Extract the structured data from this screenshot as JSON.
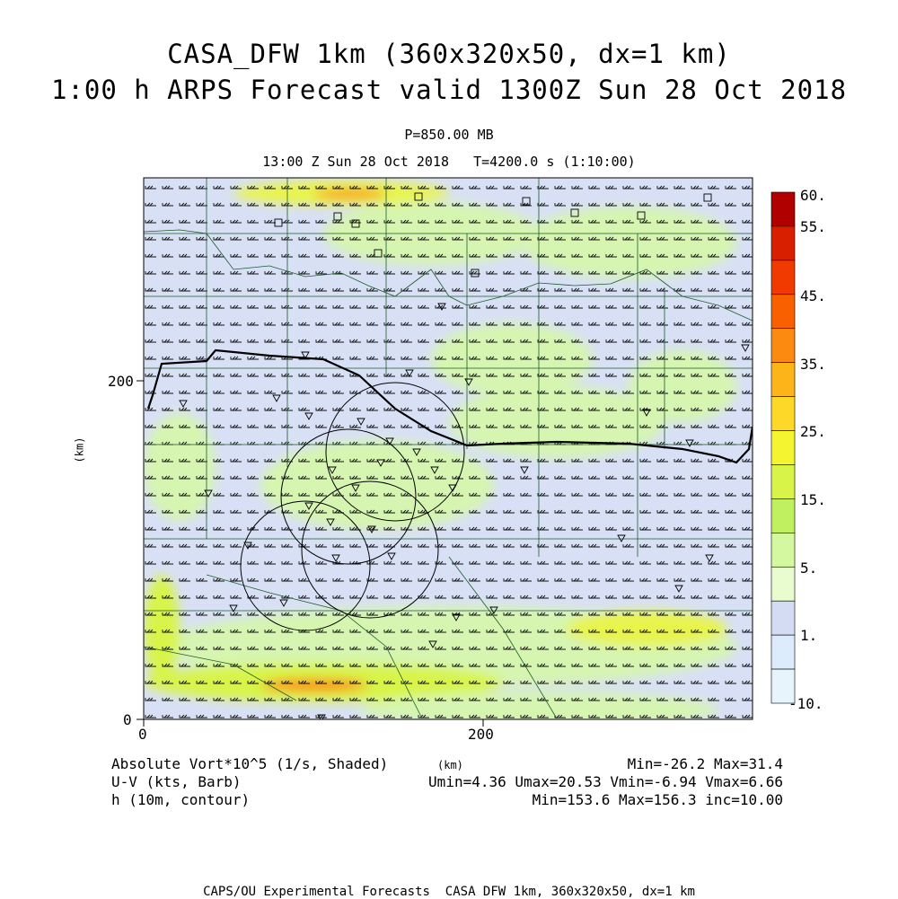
{
  "title": {
    "line1": "CASA_DFW 1km (360x320x50, dx=1 km)",
    "line2": "1:00 h ARPS Forecast valid 1300Z Sun 28 Oct 2018"
  },
  "subtitle": {
    "pressure": "P=850.00 MB",
    "time": "13:00 Z Sun 28 Oct 2018   T=4200.0 s (1:10:00)"
  },
  "axes": {
    "x_label": "(km)",
    "y_label": "(km)",
    "x_ticks": [
      {
        "value": 0,
        "label": "0"
      },
      {
        "value": 200,
        "label": "200"
      }
    ],
    "y_ticks": [
      {
        "value": 0,
        "label": "0"
      },
      {
        "value": 200,
        "label": "200"
      }
    ],
    "x_range_km": [
      0,
      360
    ],
    "y_range_km": [
      0,
      320
    ]
  },
  "colorbar": {
    "labels": [
      "60.",
      "55.",
      "45.",
      "35.",
      "25.",
      "15.",
      "5.",
      "1.",
      "-10."
    ],
    "colors": [
      "#b00000",
      "#d82000",
      "#f03a00",
      "#f86000",
      "#fc8a10",
      "#fdb418",
      "#fdd828",
      "#f4f430",
      "#d8f448",
      "#c0f060",
      "#d4f8a0",
      "#e8fcd0",
      "#d4dcf4",
      "#dcecfc",
      "#e8f4fc"
    ]
  },
  "legend": {
    "var1": "Absolute Vort*10^5 (1/s, Shaded)",
    "var2": "U-V (kts, Barb)",
    "var3": "h (10m, contour)",
    "stats1": "Min=-26.2 Max=31.4",
    "stats2": "Umin=4.36 Umax=20.53 Vmin=-6.94 Vmax=6.66",
    "stats3": "Min=153.6 Max=156.3 inc=10.00"
  },
  "footer": "CAPS/OU Experimental Forecasts  CASA DFW 1km, 360x320x50, dx=1 km"
}
